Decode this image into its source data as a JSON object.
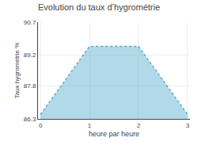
{
  "chart_data": {
    "type": "area",
    "title": "Evolution du taux d’hygrométrie",
    "xlabel": "heure par heure",
    "ylabel": "Taux hygrométrie %",
    "x": [
      0,
      1,
      2,
      3
    ],
    "values": [
      86.5,
      89.6,
      89.6,
      86.5
    ],
    "xlim": [
      -0.05,
      3.05
    ],
    "ylim": [
      86.3,
      90.7
    ],
    "xticks": [
      0,
      1,
      2,
      3
    ],
    "yticks": [
      86.3,
      87.8,
      89.2,
      90.7
    ],
    "grid": true,
    "color": "#55aacc",
    "line_style": "dotted"
  }
}
